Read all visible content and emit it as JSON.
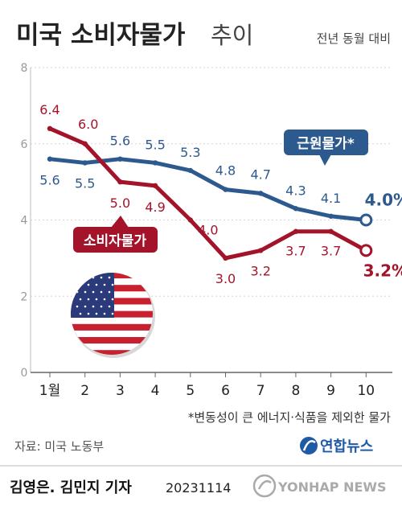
{
  "header": {
    "title": "미국 소비자물가",
    "title_suffix": "추이",
    "subtitle": "전년 동월 대비"
  },
  "callouts": {
    "core": "근원물가*",
    "cpi": "소비자물가"
  },
  "footer": {
    "footnote": "*변동성이 큰 에너지·식품을 제외한 물가",
    "source": "자료: 미국 노동부",
    "agency": "연합뉴스",
    "credit": "김영은. 김민지 기자",
    "date": "20231114",
    "watermark": "YONHAP NEWS"
  },
  "colors": {
    "cpi": "#a3142a",
    "core": "#2d5a8e",
    "axis": "#999999",
    "grid": "#d6d6d6",
    "text_dark": "#222222"
  },
  "chart_data": {
    "type": "line",
    "categories": [
      "1월",
      "2",
      "3",
      "4",
      "5",
      "6",
      "7",
      "8",
      "9",
      "10"
    ],
    "ylim": [
      0,
      8
    ],
    "yticks": [
      "0",
      "2",
      "4",
      "6",
      "8"
    ],
    "grid": true,
    "series": [
      {
        "name": "소비자물가",
        "color": "#a3142a",
        "values": [
          6.4,
          6.0,
          5.0,
          4.9,
          4.0,
          3.0,
          3.2,
          3.7,
          3.7,
          3.2
        ],
        "labels": [
          "6.4",
          "6.0",
          "5.0",
          "4.9",
          "4.0",
          "3.0",
          "3.2",
          "3.7",
          "3.7",
          "3.2%"
        ]
      },
      {
        "name": "근원물가*",
        "color": "#2d5a8e",
        "values": [
          5.6,
          5.5,
          5.6,
          5.5,
          5.3,
          4.8,
          4.7,
          4.3,
          4.1,
          4.0
        ],
        "labels": [
          "5.6",
          "5.5",
          "5.6",
          "5.5",
          "5.3",
          "4.8",
          "4.7",
          "4.3",
          "4.1",
          "4.0%"
        ]
      }
    ]
  }
}
